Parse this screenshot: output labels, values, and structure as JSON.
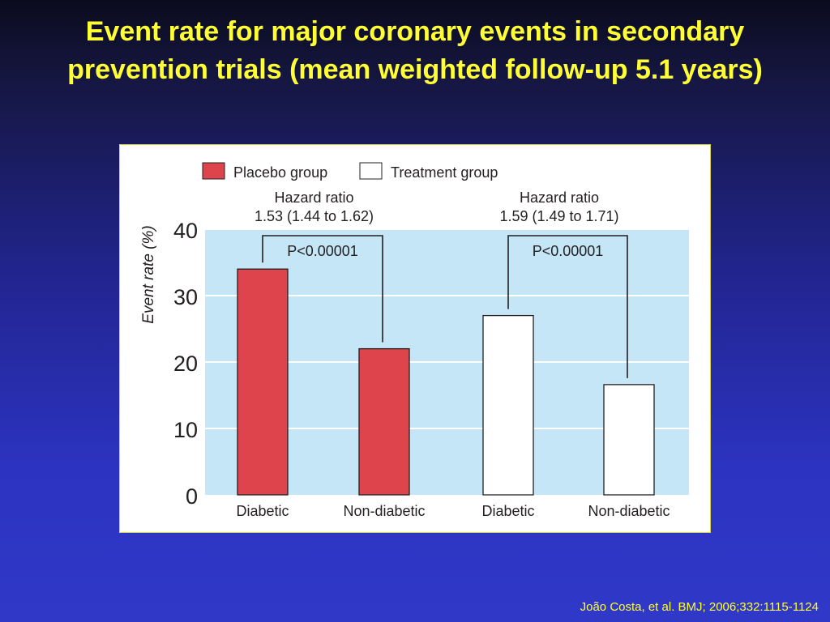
{
  "slide": {
    "title": "Event rate for major coronary events in secondary prevention trials (mean weighted follow-up 5.1 years)",
    "citation": "João Costa, et al. BMJ; 2006;332:1115-1124"
  },
  "colors": {
    "background_top": "#0b0b1e",
    "background_bottom": "#3038c8",
    "title": "#ffff33",
    "plot_area": "#c4e6f6",
    "placebo": "#dd444b",
    "treatment": "#ffffff"
  },
  "chart_data": {
    "type": "bar",
    "title": "",
    "xlabel": "",
    "ylabel": "Event rate (%)",
    "ylim": [
      0,
      40
    ],
    "yticks": [
      "0",
      "10",
      "20",
      "30",
      "40"
    ],
    "grid": true,
    "legend_position": "top-left",
    "categories": [
      "Diabetic",
      "Non-diabetic",
      "Diabetic",
      "Non-diabetic"
    ],
    "series": [
      {
        "name": "Placebo group",
        "color": "#dd444b",
        "values": [
          34,
          22,
          null,
          null
        ]
      },
      {
        "name": "Treatment group",
        "color": "#ffffff",
        "values": [
          null,
          null,
          27,
          16.6
        ]
      }
    ],
    "annotations": [
      {
        "heading": "Hazard ratio",
        "value": "1.53 (1.44 to 1.62)",
        "p_value": "P<0.00001",
        "bars": [
          0,
          1
        ]
      },
      {
        "heading": "Hazard ratio",
        "value": "1.59 (1.49 to 1.71)",
        "p_value": "P<0.00001",
        "bars": [
          2,
          3
        ]
      }
    ]
  }
}
